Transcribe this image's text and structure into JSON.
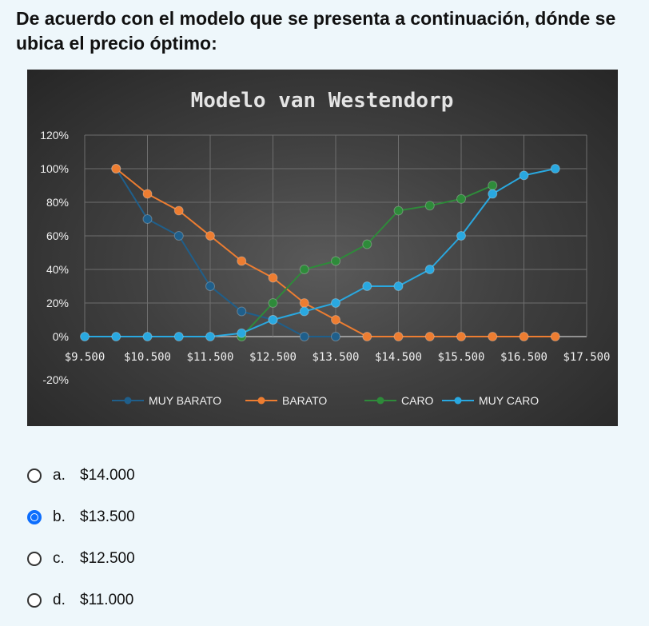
{
  "question": {
    "text": "De acuerdo con el modelo que se presenta a continuación, dónde se ubica el precio óptimo:"
  },
  "chart_data": {
    "type": "line",
    "title": "Modelo van Westendorp",
    "x": [
      9500,
      10000,
      10500,
      11000,
      11500,
      12000,
      12500,
      13000,
      13500,
      14000,
      14500,
      15000,
      15500,
      16000,
      16500,
      17000
    ],
    "x_tick_labels": [
      "$9.500",
      "$10.500",
      "$11.500",
      "$12.500",
      "$13.500",
      "$14.500",
      "$15.500",
      "$16.500",
      "$17.500"
    ],
    "x_tick_values": [
      9500,
      10500,
      11500,
      12500,
      13500,
      14500,
      15500,
      16500,
      17500
    ],
    "xlim": [
      9500,
      17500
    ],
    "y_tick_labels": [
      "-20%",
      "0%",
      "20%",
      "40%",
      "60%",
      "80%",
      "100%",
      "120%"
    ],
    "y_tick_values": [
      -20,
      0,
      20,
      40,
      60,
      80,
      100,
      120
    ],
    "ylim": [
      -20,
      120
    ],
    "grid": true,
    "legend_position": "bottom",
    "series": [
      {
        "name": "MUY BARATO",
        "color": "#1f5f8b",
        "x": [
          10000,
          10500,
          11000,
          11500,
          12000,
          12500,
          13000,
          13500
        ],
        "values": [
          100,
          70,
          60,
          30,
          15,
          10,
          0,
          0
        ]
      },
      {
        "name": "BARATO",
        "color": "#ed7d31",
        "x": [
          10000,
          10500,
          11000,
          11500,
          12000,
          12500,
          13000,
          13500,
          14000,
          14500,
          15000,
          15500,
          16000,
          16500,
          17000
        ],
        "values": [
          100,
          85,
          75,
          60,
          45,
          35,
          20,
          10,
          0,
          0,
          0,
          0,
          0,
          0,
          0
        ]
      },
      {
        "name": "CARO",
        "color": "#2e8b3a",
        "x": [
          12000,
          12500,
          13000,
          13500,
          14000,
          14500,
          15000,
          15500,
          16000
        ],
        "values": [
          0,
          20,
          40,
          45,
          55,
          75,
          78,
          82,
          90
        ]
      },
      {
        "name": "MUY CARO",
        "color": "#29a8e0",
        "x": [
          9500,
          10000,
          10500,
          11000,
          11500,
          12000,
          12500,
          13000,
          13500,
          14000,
          14500,
          15000,
          15500,
          16000,
          16500,
          17000
        ],
        "values": [
          0,
          0,
          0,
          0,
          0,
          2,
          10,
          15,
          20,
          30,
          30,
          40,
          60,
          85,
          96,
          100
        ]
      }
    ]
  },
  "options": [
    {
      "letter": "a.",
      "text": "$14.000",
      "checked": false
    },
    {
      "letter": "b.",
      "text": "$13.500",
      "checked": true
    },
    {
      "letter": "c.",
      "text": "$12.500",
      "checked": false
    },
    {
      "letter": "d.",
      "text": "$11.000",
      "checked": false
    }
  ]
}
